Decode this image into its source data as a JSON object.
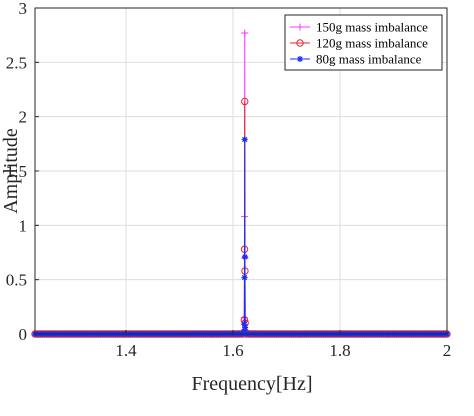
{
  "chart_data": {
    "type": "line",
    "title": "",
    "xlabel": "Frequency[Hz]",
    "ylabel": "Amplitude",
    "xlim": [
      1.23,
      2.0
    ],
    "ylim": [
      0,
      3
    ],
    "xticks": [
      1.4,
      1.6,
      1.8,
      2
    ],
    "xtick_labels": [
      "1.4",
      "1.6",
      "1.8",
      "2"
    ],
    "yticks": [
      0,
      0.5,
      1,
      1.5,
      2,
      2.5,
      3
    ],
    "ytick_labels": [
      "0",
      "0.5",
      "1",
      "1.5",
      "2",
      "2.5",
      "3"
    ],
    "grid": true,
    "legend_position": "top-right",
    "series": [
      {
        "name": "150g mass imbalance",
        "color": "#ff33ff",
        "marker": "plus",
        "peak_points": [
          {
            "x": 1.6209,
            "y": 0.03
          },
          {
            "x": 1.6212,
            "y": 0.15
          },
          {
            "x": 1.6216,
            "y": 1.08
          },
          {
            "x": 1.622,
            "y": 2.77
          },
          {
            "x": 1.6224,
            "y": 0.7
          },
          {
            "x": 1.6228,
            "y": 0.12
          },
          {
            "x": 1.6232,
            "y": 0.03
          }
        ]
      },
      {
        "name": "120g mass imbalance",
        "color": "#e8262a",
        "marker": "circle",
        "peak_points": [
          {
            "x": 1.6209,
            "y": 0.02
          },
          {
            "x": 1.6212,
            "y": 0.13
          },
          {
            "x": 1.6216,
            "y": 0.78
          },
          {
            "x": 1.622,
            "y": 2.14
          },
          {
            "x": 1.6224,
            "y": 0.58
          },
          {
            "x": 1.6228,
            "y": 0.1
          },
          {
            "x": 1.6232,
            "y": 0.02
          }
        ]
      },
      {
        "name": "80g mass imbalance",
        "color": "#1a2ef5",
        "marker": "asterisk",
        "peak_points": [
          {
            "x": 1.6209,
            "y": 0.02
          },
          {
            "x": 1.6212,
            "y": 0.09
          },
          {
            "x": 1.6216,
            "y": 0.52
          },
          {
            "x": 1.622,
            "y": 1.79
          },
          {
            "x": 1.6224,
            "y": 0.71
          },
          {
            "x": 1.6228,
            "y": 0.06
          },
          {
            "x": 1.6232,
            "y": 0.01
          }
        ]
      }
    ],
    "baseline": {
      "y": 0,
      "x_range": [
        1.23,
        2.0
      ],
      "marker_step": 0.0035
    }
  }
}
